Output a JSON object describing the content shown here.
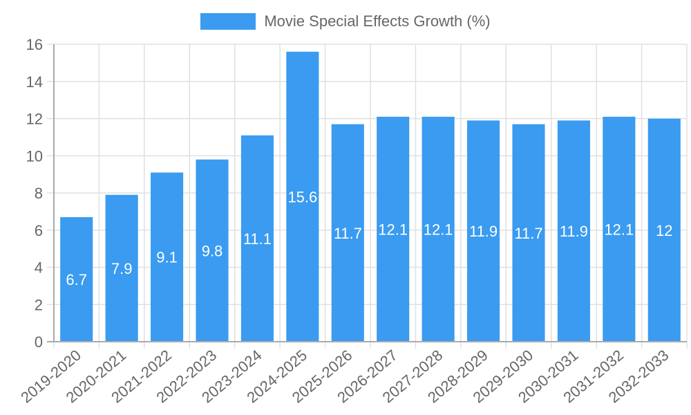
{
  "chart_data": {
    "type": "bar",
    "title": "",
    "xlabel": "",
    "ylabel": "",
    "ylim": [
      0,
      16
    ],
    "yticks": [
      0,
      2,
      4,
      6,
      8,
      10,
      12,
      14,
      16
    ],
    "grid": true,
    "legend_position": "top",
    "categories": [
      "2019-2020",
      "2020-2021",
      "2021-2022",
      "2022-2023",
      "2023-2024",
      "2024-2025",
      "2025-2026",
      "2026-2027",
      "2027-2028",
      "2028-2029",
      "2029-2030",
      "2030-2031",
      "2031-2032",
      "2032-2033"
    ],
    "series": [
      {
        "name": "Movie Special Effects Growth (%)",
        "color": "#3a9bf0",
        "values": [
          6.7,
          7.9,
          9.1,
          9.8,
          11.1,
          15.6,
          11.7,
          12.1,
          12.1,
          11.9,
          11.7,
          11.9,
          12.1,
          12
        ]
      }
    ],
    "data_labels": [
      "6.7",
      "7.9",
      "9.1",
      "9.8",
      "11.1",
      "15.6",
      "11.7",
      "12.1",
      "12.1",
      "11.9",
      "11.7",
      "11.9",
      "12.1",
      "12"
    ]
  },
  "legend": {
    "label": "Movie Special Effects Growth (%)",
    "color": "#3a9bf0"
  }
}
